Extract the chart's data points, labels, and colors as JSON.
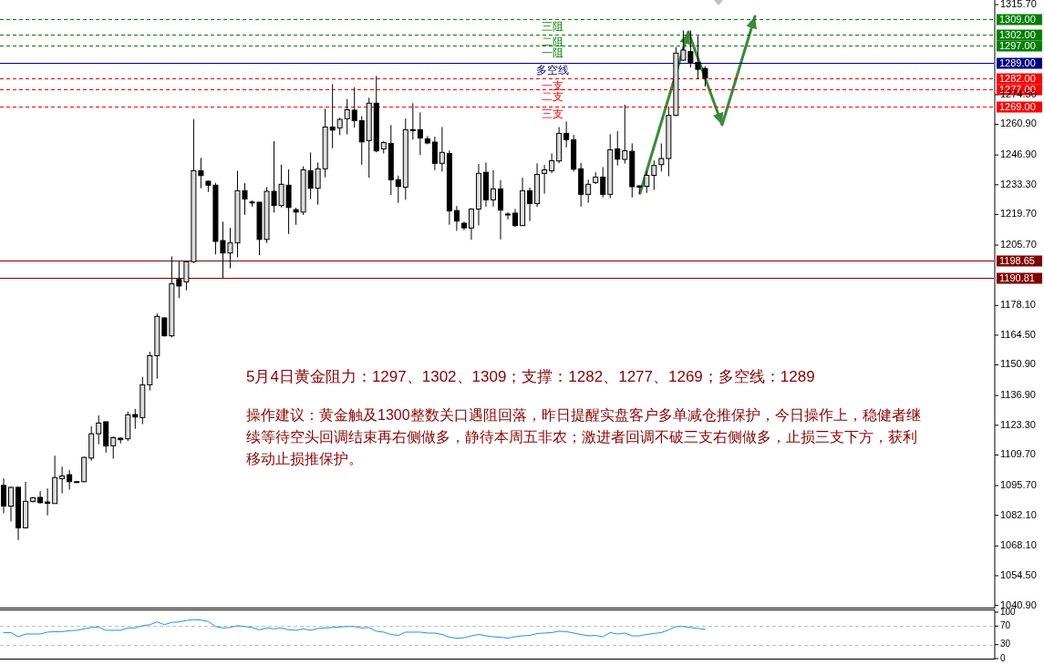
{
  "chart_data": [
    {
      "type": "candlestick",
      "ylim": [
        1039.9,
        1317.8
      ],
      "tick_labels": "y",
      "yticks": [
        {
          "value": 1315.7,
          "label": "1315.70"
        },
        {
          "value": 1274.5,
          "label": "1274.50"
        },
        {
          "value": 1260.9,
          "label": "1260.90"
        },
        {
          "value": 1246.9,
          "label": "1246.90"
        },
        {
          "value": 1233.3,
          "label": "1233.30"
        },
        {
          "value": 1219.7,
          "label": "1219.70"
        },
        {
          "value": 1205.7,
          "label": "1205.70"
        },
        {
          "value": 1178.1,
          "label": "1178.10"
        },
        {
          "value": 1164.5,
          "label": "1164.50"
        },
        {
          "value": 1150.9,
          "label": "1150.90"
        },
        {
          "value": 1136.9,
          "label": "1136.90"
        },
        {
          "value": 1123.3,
          "label": "1123.30"
        },
        {
          "value": 1109.7,
          "label": "1109.70"
        },
        {
          "value": 1095.7,
          "label": "1095.70"
        },
        {
          "value": 1082.1,
          "label": "1082.10"
        },
        {
          "value": 1068.1,
          "label": "1068.10"
        },
        {
          "value": 1054.5,
          "label": "1054.50"
        },
        {
          "value": 1040.9,
          "label": "1040.90"
        }
      ],
      "categories": [
        null,
        null,
        null,
        null,
        null,
        null,
        null,
        null,
        null,
        null,
        null,
        null,
        null,
        null,
        null,
        null,
        null,
        null,
        null,
        null,
        null,
        null,
        null,
        null,
        null,
        null,
        null,
        null,
        null,
        null,
        null,
        null,
        null,
        null,
        null,
        null,
        null,
        null,
        null,
        null,
        null,
        null,
        null,
        null,
        null,
        null,
        null,
        null,
        null,
        null,
        null,
        null,
        null,
        null,
        null,
        null,
        null,
        null,
        null,
        null,
        null,
        null,
        null,
        null,
        null,
        null,
        null,
        null,
        null,
        null,
        null,
        null,
        null,
        null,
        null,
        null,
        null,
        null,
        null,
        null,
        null,
        null,
        null,
        null,
        null,
        null,
        null,
        null,
        null,
        null,
        null,
        null,
        null,
        null,
        null,
        null,
        null,
        null,
        null,
        null,
        null,
        null,
        null,
        null,
        null,
        null,
        null,
        null,
        null,
        null,
        null,
        null,
        null,
        null,
        null,
        null,
        null,
        null,
        null,
        null,
        null,
        null,
        null,
        null,
        null,
        null,
        null,
        null,
        null,
        null,
        null,
        null,
        null,
        null,
        null,
        null
      ],
      "ohlc": [
        [
          1095.8,
          1099.0,
          1083.1,
          1086.3
        ],
        [
          1086.3,
          1095.3,
          1079.3,
          1094.9
        ],
        [
          1094.9,
          1095.3,
          1070.8,
          1076.4
        ],
        [
          1076.4,
          1097.4,
          1076.1,
          1088.5
        ],
        [
          1088.5,
          1090.5,
          1088.0,
          1090.1
        ],
        [
          1090.3,
          1093.2,
          1087.5,
          1087.9
        ],
        [
          1088.2,
          1094.4,
          1082.1,
          1087.6
        ],
        [
          1087.5,
          1109.4,
          1087.5,
          1099.4
        ],
        [
          1098.9,
          1104.4,
          1092.1,
          1100.1
        ],
        [
          1100.7,
          1102.8,
          1093.9,
          1097.5
        ],
        [
          1097.5,
          1097.7,
          1097.0,
          1097.1
        ],
        [
          1097.5,
          1108.9,
          1097.2,
          1108.6
        ],
        [
          1108.3,
          1122.9,
          1107.1,
          1119.4
        ],
        [
          1119.4,
          1127.8,
          1114.6,
          1124.3
        ],
        [
          1124.9,
          1124.9,
          1110.8,
          1113.8
        ],
        [
          1113.9,
          1118.2,
          1108.0,
          1117.6
        ],
        [
          1117.4,
          1117.8,
          1115.0,
          1116.7
        ],
        [
          1117.1,
          1129.6,
          1116.1,
          1128.1
        ],
        [
          1128.2,
          1130.8,
          1121.7,
          1127.1
        ],
        [
          1126.8,
          1145.3,
          1123.8,
          1141.8
        ],
        [
          1141.8,
          1156.9,
          1139.2,
          1155.1
        ],
        [
          1155.1,
          1174.4,
          1144.6,
          1173.1
        ],
        [
          1172.4,
          1172.6,
          1163.9,
          1164.2
        ],
        [
          1164.2,
          1200.5,
          1163.5,
          1188.0
        ],
        [
          1190.0,
          1198.3,
          1181.5,
          1187.0
        ],
        [
          1188.9,
          1198.5,
          1185.0,
          1198.1
        ],
        [
          1198.1,
          1263.3,
          1197.5,
          1239.7
        ],
        [
          1239.7,
          1245.6,
          1231.7,
          1237.5
        ],
        [
          1234.9,
          1235.2,
          1230.0,
          1233.1
        ],
        [
          1233.1,
          1234.2,
          1201.5,
          1207.4
        ],
        [
          1207.8,
          1216.4,
          1190.7,
          1202.1
        ],
        [
          1202.1,
          1213.6,
          1195.1,
          1206.7
        ],
        [
          1206.7,
          1239.7,
          1200.1,
          1230.6
        ],
        [
          1230.6,
          1234.0,
          1219.6,
          1226.8
        ],
        [
          1225.4,
          1226.1,
          1223.3,
          1225.3
        ],
        [
          1225.3,
          1225.5,
          1201.1,
          1208.3
        ],
        [
          1208.3,
          1232.2,
          1206.7,
          1230.3
        ],
        [
          1230.3,
          1253.2,
          1220.6,
          1223.8
        ],
        [
          1223.8,
          1242.5,
          1222.9,
          1233.5
        ],
        [
          1233.1,
          1240.3,
          1210.8,
          1222.9
        ],
        [
          1221.9,
          1222.8,
          1215.0,
          1220.8
        ],
        [
          1220.8,
          1241.7,
          1219.5,
          1240.1
        ],
        [
          1239.7,
          1248.1,
          1226.7,
          1231.7
        ],
        [
          1231.7,
          1243.5,
          1224.2,
          1240.6
        ],
        [
          1240.6,
          1268.1,
          1236.7,
          1259.7
        ],
        [
          1259.7,
          1279.3,
          1250.0,
          1258.3
        ],
        [
          1259.3,
          1263.9,
          1256.0,
          1263.2
        ],
        [
          1263.5,
          1272.5,
          1256.3,
          1267.6
        ],
        [
          1267.4,
          1277.9,
          1259.4,
          1262.6
        ],
        [
          1262.6,
          1264.7,
          1242.5,
          1252.9
        ],
        [
          1253.5,
          1273.1,
          1236.5,
          1270.6
        ],
        [
          1270.6,
          1283.1,
          1248.1,
          1248.8
        ],
        [
          1249.7,
          1253.2,
          1247.6,
          1252.6
        ],
        [
          1252.2,
          1260.6,
          1228.6,
          1235.6
        ],
        [
          1235.6,
          1237.5,
          1225.0,
          1232.5
        ],
        [
          1232.2,
          1263.6,
          1226.4,
          1258.5
        ],
        [
          1258.5,
          1270.6,
          1253.9,
          1258.5
        ],
        [
          1258.5,
          1266.4,
          1246.9,
          1254.7
        ],
        [
          1254.3,
          1255.6,
          1251.8,
          1252.4
        ],
        [
          1252.8,
          1255.3,
          1240.0,
          1243.1
        ],
        [
          1243.1,
          1259.7,
          1239.3,
          1248.1
        ],
        [
          1247.6,
          1249.0,
          1215.0,
          1221.3
        ],
        [
          1221.5,
          1223.6,
          1212.2,
          1216.7
        ],
        [
          1215.7,
          1216.4,
          1212.5,
          1213.6
        ],
        [
          1213.5,
          1222.6,
          1208.1,
          1222.2
        ],
        [
          1222.2,
          1242.8,
          1214.7,
          1238.5
        ],
        [
          1239.0,
          1243.5,
          1223.3,
          1226.4
        ],
        [
          1226.4,
          1240.0,
          1223.3,
          1231.4
        ],
        [
          1231.4,
          1235.4,
          1208.3,
          1221.7
        ],
        [
          1219.9,
          1220.8,
          1217.5,
          1219.9
        ],
        [
          1220.3,
          1222.2,
          1214.0,
          1214.6
        ],
        [
          1214.6,
          1236.5,
          1214.5,
          1230.6
        ],
        [
          1230.6,
          1232.0,
          1216.7,
          1224.7
        ],
        [
          1224.7,
          1243.1,
          1223.1,
          1238.0
        ],
        [
          1238.5,
          1242.4,
          1229.2,
          1240.1
        ],
        [
          1239.7,
          1247.6,
          1238.6,
          1244.3
        ],
        [
          1244.2,
          1259.7,
          1243.1,
          1256.8
        ],
        [
          1256.8,
          1262.2,
          1250.4,
          1253.9
        ],
        [
          1253.9,
          1256.1,
          1239.3,
          1240.4
        ],
        [
          1240.6,
          1243.3,
          1223.3,
          1228.9
        ],
        [
          1228.9,
          1235.6,
          1225.0,
          1233.5
        ],
        [
          1234.3,
          1239.0,
          1233.6,
          1236.8
        ],
        [
          1236.8,
          1241.4,
          1227.5,
          1228.9
        ],
        [
          1228.9,
          1256.4,
          1227.2,
          1249.3
        ],
        [
          1249.7,
          1257.8,
          1242.1,
          1245.0
        ],
        [
          1244.9,
          1269.9,
          1243.0,
          1248.9
        ],
        [
          1248.6,
          1252.2,
          1227.5,
          1232.4
        ],
        [
          1232.8,
          1233.0,
          1228.9,
          1232.2
        ],
        [
          1232.6,
          1239.6,
          1229.6,
          1237.6
        ],
        [
          1237.6,
          1244.4,
          1231.0,
          1242.1
        ],
        [
          1242.5,
          1252.2,
          1239.3,
          1245.3
        ],
        [
          1245.3,
          1269.2,
          1237.2,
          1265.0
        ],
        [
          1265.0,
          1296.3,
          1264.7,
          1293.5
        ],
        [
          1290.3,
          1303.9,
          1290.0,
          1294.9
        ],
        [
          1294.2,
          1303.9,
          1287.0,
          1289.3
        ],
        [
          1289.3,
          1301.4,
          1281.7,
          1286.1
        ],
        [
          1286.5,
          1287.5,
          1278.2,
          1282.1
        ],
        null,
        null,
        null,
        null,
        null,
        null,
        null,
        null,
        null,
        null,
        null,
        null,
        null,
        null,
        null,
        null,
        null,
        null,
        null,
        null,
        null,
        null,
        null,
        null,
        null,
        null,
        null,
        null,
        null,
        null,
        null,
        null,
        null,
        null,
        null,
        null,
        null,
        null,
        null
      ],
      "ref_lines": [
        {
          "axis": "y",
          "value": 1309,
          "label": "1309.00",
          "color": "#008000",
          "line_style": "dashed"
        },
        {
          "axis": "y",
          "value": 1302,
          "label": "1302.00",
          "color": "#008000",
          "line_style": "dashed"
        },
        {
          "axis": "y",
          "value": 1297,
          "label": "1297.00",
          "color": "#008000",
          "line_style": "dashed"
        },
        {
          "axis": "y",
          "value": 1289,
          "label": "1289.00",
          "color": "#000080",
          "line_style": "solid"
        },
        {
          "axis": "y",
          "value": 1282,
          "label": "1282.00",
          "color": "#ff0000",
          "line_style": "dashed"
        },
        {
          "axis": "y",
          "value": 1277,
          "label": "1277.00",
          "color": "#ff0000",
          "line_style": "dashed"
        },
        {
          "axis": "y",
          "value": 1269,
          "label": "1269.00",
          "color": "#ff0000",
          "line_style": "dashed"
        },
        {
          "axis": "y",
          "value": 1198.65,
          "label": "1198.65",
          "color": "#800000",
          "line_style": "solid"
        },
        {
          "axis": "y",
          "value": 1190.81,
          "label": "1190.81",
          "color": "#800000",
          "line_style": "solid"
        }
      ],
      "annotations": [
        {
          "text": "三阻",
          "y": 1309
        },
        {
          "text": "二阻",
          "y": 1302
        },
        {
          "text": "一阻",
          "y": 1297
        },
        {
          "text": "多空线",
          "y": 1289
        },
        {
          "text": "一支",
          "y": 1282
        },
        {
          "text": "二支",
          "y": 1277
        },
        {
          "text": "三支",
          "y": 1269
        },
        "5月4日黄金阻力：1297、1302、1309；支撑：1282、1277、1269；多空线：1289",
        "操作建议：黄金触及1300整数关口遇阻回落，昨日提醒实盘客户多单减仓推保护，今日操作上，稳健者继续等待空头回调结束再右侧做多，静待本周五非农；激进者回调不破三支右侧做多，止损三支下方，获利移动止损推保护。"
      ]
    },
    {
      "type": "line",
      "ylim": [
        0,
        100
      ],
      "tick_labels": "y",
      "yticks": [
        100,
        70,
        30,
        0
      ],
      "categories": [
        null,
        null,
        null,
        null,
        null,
        null,
        null,
        null,
        null,
        null,
        null,
        null,
        null,
        null,
        null,
        null,
        null,
        null,
        null,
        null,
        null,
        null,
        null,
        null,
        null,
        null,
        null,
        null,
        null,
        null,
        null,
        null,
        null,
        null,
        null,
        null,
        null,
        null,
        null,
        null,
        null,
        null,
        null,
        null,
        null,
        null,
        null,
        null,
        null,
        null,
        null,
        null,
        null,
        null,
        null,
        null,
        null,
        null,
        null,
        null,
        null,
        null,
        null,
        null,
        null,
        null,
        null,
        null,
        null,
        null,
        null,
        null,
        null,
        null,
        null,
        null,
        null,
        null,
        null,
        null,
        null,
        null,
        null,
        null,
        null,
        null,
        null,
        null,
        null,
        null,
        null,
        null,
        null,
        null,
        null,
        null,
        null,
        null,
        null,
        null,
        null,
        null,
        null,
        null,
        null,
        null,
        null,
        null,
        null,
        null,
        null,
        null,
        null,
        null,
        null,
        null,
        null,
        null,
        null,
        null,
        null,
        null,
        null,
        null,
        null,
        null,
        null,
        null,
        null,
        null,
        null,
        null,
        null,
        null,
        null,
        null
      ],
      "ref_lines": [
        {
          "axis": "y",
          "value": 70,
          "color": "#c0c0c0",
          "line_style": "dashed"
        },
        {
          "axis": "y",
          "value": 30,
          "color": "#c0c0c0",
          "line_style": "dashed"
        }
      ],
      "series": [
        {
          "color": "#1e90ff",
          "values": [
            56,
            56,
            47,
            53,
            53,
            53,
            57,
            58,
            58,
            60,
            61,
            64,
            67,
            68,
            61,
            61,
            61,
            66,
            66,
            71,
            73,
            79,
            73,
            78,
            79,
            82,
            84,
            83,
            80,
            69,
            66,
            67,
            71,
            69,
            67,
            62,
            66,
            64,
            66,
            62,
            61,
            64,
            61,
            65,
            66,
            67,
            68,
            69,
            69,
            66,
            67,
            59,
            57,
            52,
            50,
            57,
            57,
            57,
            55,
            55,
            52,
            46,
            44,
            45,
            49,
            52,
            49,
            47,
            46,
            44,
            47,
            49,
            50,
            54,
            55,
            56,
            59,
            58,
            55,
            52,
            49,
            50,
            47,
            56,
            53,
            55,
            49,
            49,
            52,
            54,
            56,
            62,
            69,
            69,
            67,
            65,
            63,
            null,
            null,
            null,
            null,
            null,
            null,
            null,
            null,
            null,
            null,
            null,
            null,
            null,
            null,
            null,
            null,
            null,
            null,
            null,
            null,
            null,
            null,
            null,
            null,
            null,
            null,
            null,
            null,
            null,
            null,
            null,
            null,
            null,
            null,
            null,
            null,
            null,
            null,
            null
          ]
        }
      ]
    }
  ]
}
